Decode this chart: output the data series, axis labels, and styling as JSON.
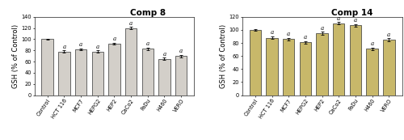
{
  "comp8": {
    "title": "Comp 8",
    "categories": [
      "Control",
      "HCT 116",
      "MCF7",
      "HEPG2",
      "HEP2",
      "CaCo2",
      "FaDu",
      "H460",
      "VERO"
    ],
    "values": [
      100,
      78,
      82,
      78,
      92,
      120,
      83,
      65,
      70
    ],
    "errors": [
      1.2,
      2.0,
      2.0,
      2.0,
      2.0,
      2.0,
      2.0,
      2.0,
      2.0
    ],
    "sig": [
      false,
      true,
      true,
      true,
      true,
      true,
      true,
      true,
      true
    ],
    "bar_color": "#d3cfc9",
    "bar_edgecolor": "#333333",
    "ylim": [
      0,
      140
    ],
    "yticks": [
      0,
      20,
      40,
      60,
      80,
      100,
      120,
      140
    ]
  },
  "comp14": {
    "title": "Comp 14",
    "categories": [
      "Control",
      "HCT 116",
      "MCF7",
      "HEPG2",
      "HEP2",
      "CaCo2",
      "FaDu",
      "H460",
      "VERO"
    ],
    "values": [
      100,
      88,
      86,
      81,
      95,
      110,
      107,
      71,
      85
    ],
    "errors": [
      1.2,
      2.0,
      2.0,
      2.0,
      2.0,
      2.0,
      2.0,
      2.0,
      2.0
    ],
    "sig": [
      false,
      true,
      true,
      true,
      true,
      true,
      true,
      true,
      true
    ],
    "bar_color": "#c8b86a",
    "bar_edgecolor": "#333333",
    "ylim": [
      0,
      120
    ],
    "yticks": [
      0,
      20,
      40,
      60,
      80,
      100,
      120
    ]
  },
  "ylabel": "GSH (% of Control)",
  "sig_label": "a",
  "sig_fontsize": 5.0,
  "title_fontsize": 7.5,
  "tick_fontsize": 4.8,
  "ylabel_fontsize": 6.0,
  "bar_width": 0.7,
  "fig_bg": "#f5f5f0"
}
